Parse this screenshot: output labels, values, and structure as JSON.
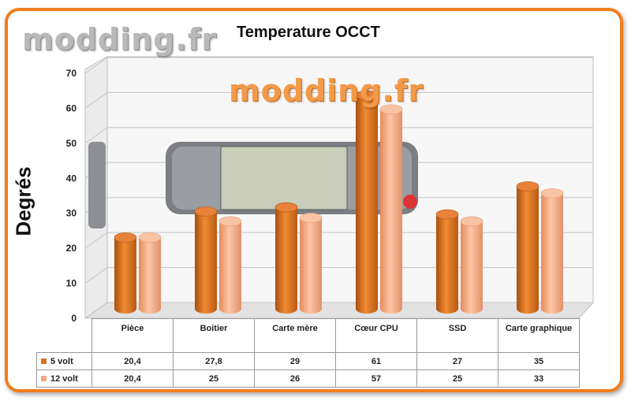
{
  "watermark": "modding.fr",
  "chart_data": {
    "type": "bar",
    "title": "Temperature OCCT",
    "ylabel": "Degrés",
    "xlabel": "",
    "ylim": [
      0,
      70
    ],
    "yticks": [
      0,
      10,
      20,
      30,
      40,
      50,
      60,
      70
    ],
    "grid": true,
    "categories": [
      "Pièce",
      "Boitier",
      "Carte mère",
      "Cœur CPU",
      "SSD",
      "Carte graphique"
    ],
    "series": [
      {
        "name": "5 volt",
        "color": "#d9711f",
        "values": [
          20.4,
          27.8,
          29,
          61,
          27,
          35
        ],
        "labels": [
          "20,4",
          "27,8",
          "29",
          "61",
          "27",
          "35"
        ]
      },
      {
        "name": "12 volt",
        "color": "#f4a77a",
        "values": [
          20.4,
          25,
          26,
          57,
          25,
          33
        ],
        "labels": [
          "20,4",
          "25",
          "26",
          "57",
          "25",
          "33"
        ]
      }
    ],
    "legend": "data-table"
  }
}
